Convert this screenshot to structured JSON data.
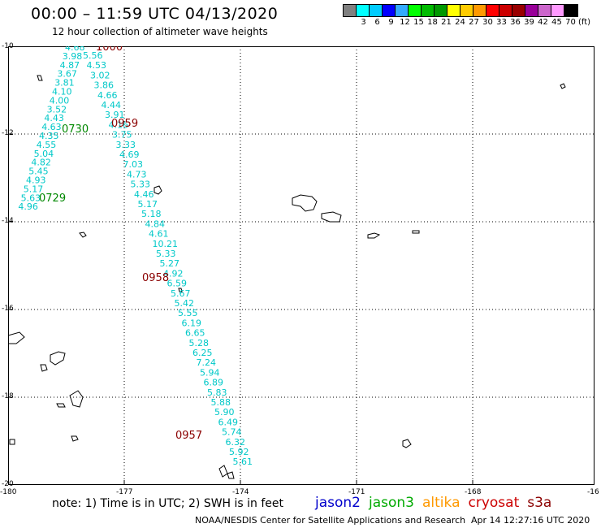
{
  "header": {
    "title": "00:00 – 11:59 UTC 04/13/2020",
    "subtitle": "12 hour collection of altimeter wave heights"
  },
  "colorbar": {
    "colors": [
      "#808080",
      "#00ffff",
      "#00ccff",
      "#0000ff",
      "#33aaff",
      "#00ff00",
      "#00bb00",
      "#009900",
      "#ffff00",
      "#ffcc00",
      "#ff9900",
      "#ff0000",
      "#cc0000",
      "#990000",
      "#990099",
      "#cc66cc",
      "#ff99ff",
      "#000000"
    ],
    "labels": [
      "",
      "3",
      "6",
      "9",
      "12",
      "15",
      "18",
      "21",
      "24",
      "27",
      "30",
      "33",
      "36",
      "39",
      "42",
      "45",
      "70",
      "(ft)"
    ]
  },
  "axes": {
    "lat_labels": [
      "-10",
      "-12",
      "-14",
      "-16",
      "-18",
      "-20"
    ],
    "lon_labels": [
      "-180",
      "-177",
      "-174",
      "-171",
      "-168",
      "-16"
    ]
  },
  "timestamps": [
    {
      "text": "1000",
      "color": "#8b0000"
    },
    {
      "text": "0959",
      "color": "#8b0000"
    },
    {
      "text": "0730",
      "color": "#008800"
    },
    {
      "text": "0729",
      "color": "#008800"
    },
    {
      "text": "0958",
      "color": "#8b0000"
    },
    {
      "text": "0957",
      "color": "#8b0000"
    }
  ],
  "track_a": {
    "color": "#00c8c8",
    "values": [
      "4.68",
      "3.98",
      "4.87",
      "3.67",
      "3.81",
      "4.10",
      "4.00",
      "3.52",
      "4.43",
      "4.63",
      "4.35",
      "4.55",
      "5.04",
      "4.82",
      "5.45",
      "4.93",
      "5.17",
      "5.63",
      "4.96"
    ]
  },
  "track_b": {
    "color": "#00c8c8",
    "values": [
      "5.56",
      "4.53",
      "3.02",
      "3.86",
      "4.66",
      "4.44",
      "3.91",
      "4.16",
      "3.75",
      "3.33",
      "4.69",
      "7.03",
      "4.73",
      "5.33",
      "4.46",
      "5.17",
      "5.18",
      "4.84",
      "4.61",
      "10.21",
      "5.33",
      "5.27",
      "4.92",
      "6.59",
      "5.67",
      "5.42",
      "5.55",
      "6.19",
      "6.65",
      "5.28",
      "6.25",
      "7.24",
      "5.94",
      "6.89",
      "5.83",
      "5.88",
      "5.90",
      "6.49",
      "5.74",
      "6.32",
      "5.92",
      "5.61"
    ]
  },
  "footer": {
    "note": "note: 1) Time is in UTC; 2) SWH is in feet",
    "satellites": [
      {
        "name": "jason2",
        "color": "#0000cc"
      },
      {
        "name": "jason3",
        "color": "#00aa00"
      },
      {
        "name": "altika",
        "color": "#ff9900"
      },
      {
        "name": "cryosat",
        "color": "#cc0000"
      },
      {
        "name": "s3a",
        "color": "#8b0000"
      }
    ],
    "credit": "NOAA/NESDIS Center for Satellite Applications and Research",
    "datestamp": "Apr 14 12:27:16 UTC 2020"
  }
}
